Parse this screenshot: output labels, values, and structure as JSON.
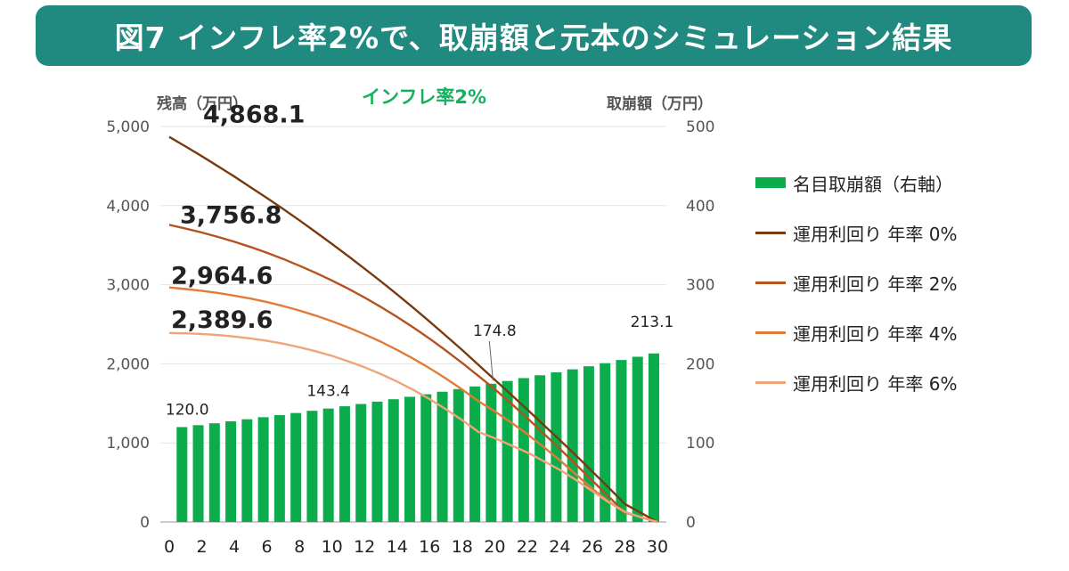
{
  "page_title": "図7 インフレ率2%で、取崩額と元本のシミュレーション結果",
  "chart_data": {
    "type": "bar+line",
    "title": "インフレ率2%",
    "ylabel_left": "残高（万円）",
    "ylabel_right": "取崩額（万円）",
    "ylim_left": [
      0,
      5000
    ],
    "ylim_right": [
      0,
      500
    ],
    "left_ticks": [
      "5,000",
      "4,000",
      "3,000",
      "2,000",
      "1,000",
      "0"
    ],
    "right_ticks": [
      "500",
      "400",
      "300",
      "200",
      "100",
      "0"
    ],
    "x_ticks": [
      "0",
      "2",
      "4",
      "6",
      "8",
      "10",
      "12",
      "14",
      "16",
      "18",
      "20",
      "22",
      "24",
      "26",
      "28",
      "30"
    ],
    "x": [
      0,
      1,
      2,
      3,
      4,
      5,
      6,
      7,
      8,
      9,
      10,
      11,
      12,
      13,
      14,
      15,
      16,
      17,
      18,
      19,
      20,
      21,
      22,
      23,
      24,
      25,
      26,
      27,
      28,
      29,
      30
    ],
    "bar_series": {
      "name": "名目取崩額（右軸）",
      "color": "#0aac4c",
      "values": [
        120.0,
        122.4,
        124.8,
        127.3,
        129.9,
        132.5,
        135.1,
        137.8,
        140.6,
        143.4,
        146.3,
        149.2,
        152.2,
        155.2,
        158.3,
        161.5,
        164.7,
        168.0,
        171.4,
        174.8,
        178.3,
        181.9,
        185.5,
        189.2,
        193.0,
        196.9,
        200.8,
        204.8,
        208.9,
        213.1
      ]
    },
    "line_series": [
      {
        "name": "運用利回り 年率 0%",
        "color": "#7a3a10",
        "values": [
          4868.1,
          4748,
          4625,
          4497,
          4367,
          4232,
          4097,
          3957,
          3814,
          3666,
          3515,
          3361,
          3203,
          3043,
          2878,
          2707,
          2533,
          2355,
          2174,
          1986,
          1799,
          1611,
          1421,
          1229,
          1036,
          840,
          638,
          435,
          228,
          115,
          0
        ]
      },
      {
        "name": "運用利回り 年率 2%",
        "color": "#b5521f",
        "values": [
          3756.8,
          3710,
          3660,
          3604,
          3543,
          3476,
          3404,
          3326,
          3240,
          3150,
          3053,
          2949,
          2838,
          2719,
          2593,
          2459,
          2318,
          2168,
          2011,
          1846,
          1680,
          1500,
          1313,
          1121,
          924,
          725,
          524,
          322,
          120,
          60,
          0
        ]
      },
      {
        "name": "運用利回り 年率 4%",
        "color": "#e07b3a",
        "values": [
          2964.6,
          2945,
          2923,
          2895,
          2862,
          2824,
          2780,
          2730,
          2673,
          2609,
          2538,
          2460,
          2373,
          2279,
          2176,
          2064,
          1944,
          1814,
          1675,
          1527,
          1400,
          1260,
          1110,
          950,
          780,
          600,
          420,
          260,
          120,
          60,
          0
        ]
      },
      {
        "name": "運用利回り 年率 6%",
        "color": "#f0a47a",
        "values": [
          2389.6,
          2385,
          2377,
          2364,
          2345,
          2321,
          2291,
          2254,
          2210,
          2159,
          2100,
          2032,
          1956,
          1871,
          1776,
          1670,
          1553,
          1426,
          1288,
          1139,
          1060,
          970,
          880,
          770,
          660,
          530,
          390,
          250,
          130,
          60,
          0
        ]
      }
    ],
    "annotations": [
      {
        "text": "4,868.1",
        "series": "line",
        "index": 0
      },
      {
        "text": "3,756.8",
        "series": "line",
        "index": 1
      },
      {
        "text": "2,964.6",
        "series": "line",
        "index": 2
      },
      {
        "text": "2,389.6",
        "series": "line",
        "index": 3
      },
      {
        "text": "120.0",
        "series": "bar",
        "year": 1
      },
      {
        "text": "143.4",
        "series": "bar",
        "year": 10
      },
      {
        "text": "174.8",
        "series": "bar",
        "year": 20
      },
      {
        "text": "213.1",
        "series": "bar",
        "year": 30
      }
    ],
    "grid": true,
    "legend": "right"
  }
}
